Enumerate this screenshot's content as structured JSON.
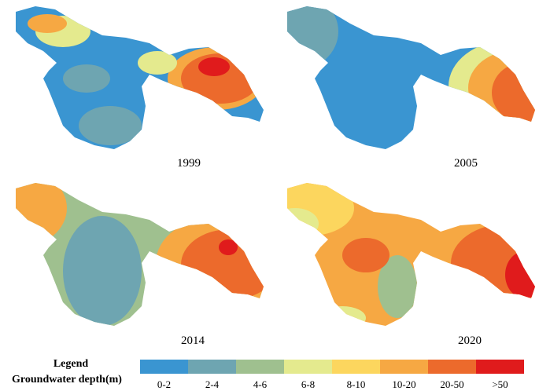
{
  "maps": [
    {
      "label": "1999"
    },
    {
      "label": "2005"
    },
    {
      "label": "2014"
    },
    {
      "label": "2020"
    }
  ],
  "legend": {
    "title": "Legend",
    "subtitle": "Groundwater depth(m)",
    "classes": [
      {
        "label": "0-2",
        "color": "#3a95d1"
      },
      {
        "label": "2-4",
        "color": "#6ea5b1"
      },
      {
        "label": "4-6",
        "color": "#9fc08f"
      },
      {
        "label": "6-8",
        "color": "#e4ea8e"
      },
      {
        "label": "8-10",
        "color": "#fcd65e"
      },
      {
        "label": "10-20",
        "color": "#f6a843"
      },
      {
        "label": "20-50",
        "color": "#ec6a2c"
      },
      {
        "label": ">50",
        "color": "#e01b1c"
      }
    ]
  }
}
